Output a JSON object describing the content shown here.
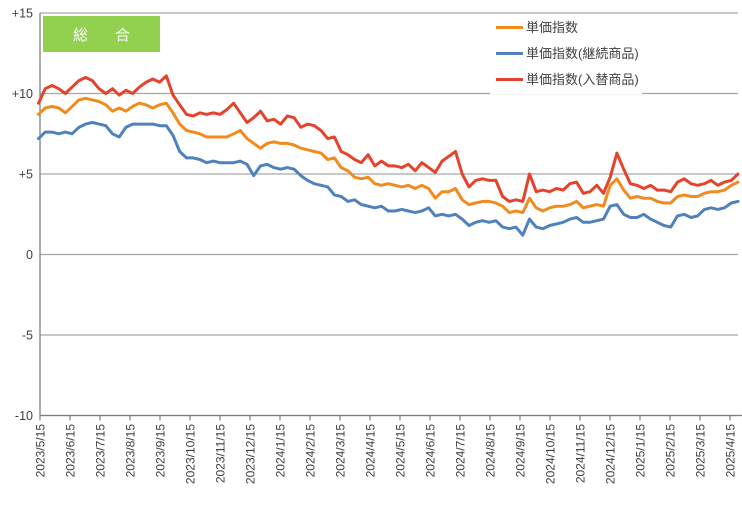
{
  "title_badge": {
    "label": "総　合",
    "bg": "#92d050",
    "text_color": "#ffffff"
  },
  "colors": {
    "background": "#ffffff",
    "gridline": "#a6a6a6",
    "axis": "#7f7f7f",
    "label_text": "#404040",
    "series_orange": "#f28b1e",
    "series_blue": "#4f81bd",
    "series_red": "#e5432c",
    "badge_green": "#92d050"
  },
  "chart_data": {
    "type": "line",
    "title": "総合",
    "x_unit": "weekly",
    "xlabel": "",
    "ylabel": "",
    "ylim": [
      -10,
      15
    ],
    "grid": "horizontal",
    "legend_position": "top-right",
    "y_ticks": [
      15,
      10,
      5,
      0,
      -5,
      -10
    ],
    "y_tick_labels": [
      "+15",
      "+10",
      "+5",
      "0",
      "-5",
      "-10"
    ],
    "x_tick_labels": [
      "2023/5/15",
      "2023/6/15",
      "2023/7/15",
      "2023/8/15",
      "2023/9/15",
      "2023/10/15",
      "2023/11/15",
      "2023/12/15",
      "2024/1/15",
      "2024/2/15",
      "2024/3/15",
      "2024/4/15",
      "2024/5/15",
      "2024/6/15",
      "2024/7/15",
      "2024/8/15",
      "2024/9/15",
      "2024/10/15",
      "2024/11/15",
      "2024/12/15",
      "2025/1/15",
      "2025/2/15",
      "2025/3/15",
      "2025/4/15"
    ],
    "series": [
      {
        "name": "単価指数",
        "color": "#f28b1e",
        "values": [
          8.7,
          9.1,
          9.2,
          9.1,
          8.8,
          9.2,
          9.6,
          9.7,
          9.6,
          9.5,
          9.3,
          8.9,
          9.1,
          8.9,
          9.2,
          9.4,
          9.3,
          9.1,
          9.3,
          9.4,
          8.8,
          8.1,
          7.7,
          7.6,
          7.5,
          7.3,
          7.3,
          7.3,
          7.3,
          7.5,
          7.7,
          7.2,
          6.9,
          6.6,
          6.9,
          7.0,
          6.9,
          6.9,
          6.8,
          6.6,
          6.5,
          6.4,
          6.3,
          5.9,
          6.0,
          5.4,
          5.2,
          4.8,
          4.7,
          4.8,
          4.4,
          4.3,
          4.4,
          4.3,
          4.2,
          4.3,
          4.1,
          4.3,
          4.1,
          3.5,
          3.9,
          3.9,
          4.1,
          3.4,
          3.1,
          3.2,
          3.3,
          3.3,
          3.2,
          3.0,
          2.6,
          2.7,
          2.6,
          3.5,
          2.9,
          2.7,
          2.9,
          3.0,
          3.0,
          3.1,
          3.3,
          2.9,
          3.0,
          3.1,
          3.0,
          4.3,
          4.7,
          4.0,
          3.5,
          3.6,
          3.5,
          3.5,
          3.3,
          3.2,
          3.2,
          3.6,
          3.7,
          3.6,
          3.6,
          3.8,
          3.9,
          3.9,
          4.0,
          4.3,
          4.5
        ]
      },
      {
        "name": "単価指数(継続商品)",
        "color": "#4f81bd",
        "values": [
          7.2,
          7.6,
          7.6,
          7.5,
          7.6,
          7.5,
          7.9,
          8.1,
          8.2,
          8.1,
          8.0,
          7.5,
          7.3,
          7.9,
          8.1,
          8.1,
          8.1,
          8.1,
          8.0,
          8.0,
          7.4,
          6.4,
          6.0,
          6.0,
          5.9,
          5.7,
          5.8,
          5.7,
          5.7,
          5.7,
          5.8,
          5.6,
          4.9,
          5.5,
          5.6,
          5.4,
          5.3,
          5.4,
          5.3,
          4.9,
          4.6,
          4.4,
          4.3,
          4.2,
          3.7,
          3.6,
          3.3,
          3.4,
          3.1,
          3.0,
          2.9,
          3.0,
          2.7,
          2.7,
          2.8,
          2.7,
          2.6,
          2.7,
          2.9,
          2.4,
          2.5,
          2.4,
          2.5,
          2.2,
          1.8,
          2.0,
          2.1,
          2.0,
          2.1,
          1.7,
          1.6,
          1.7,
          1.2,
          2.2,
          1.7,
          1.6,
          1.8,
          1.9,
          2.0,
          2.2,
          2.3,
          2.0,
          2.0,
          2.1,
          2.2,
          3.0,
          3.1,
          2.5,
          2.3,
          2.3,
          2.5,
          2.2,
          2.0,
          1.8,
          1.7,
          2.4,
          2.5,
          2.3,
          2.4,
          2.8,
          2.9,
          2.8,
          2.9,
          3.2,
          3.3
        ]
      },
      {
        "name": "単価指数(入替商品)",
        "color": "#e5432c",
        "values": [
          9.4,
          10.3,
          10.5,
          10.3,
          10.0,
          10.4,
          10.8,
          11.0,
          10.8,
          10.3,
          10.0,
          10.3,
          9.9,
          10.2,
          10.0,
          10.4,
          10.7,
          10.9,
          10.7,
          11.1,
          9.9,
          9.3,
          8.7,
          8.6,
          8.8,
          8.7,
          8.8,
          8.7,
          9.0,
          9.4,
          8.8,
          8.2,
          8.5,
          8.9,
          8.3,
          8.4,
          8.1,
          8.6,
          8.5,
          7.9,
          8.1,
          8.0,
          7.7,
          7.2,
          7.3,
          6.4,
          6.2,
          5.9,
          5.7,
          6.2,
          5.5,
          5.8,
          5.5,
          5.5,
          5.4,
          5.6,
          5.2,
          5.7,
          5.4,
          5.1,
          5.8,
          6.1,
          6.4,
          5.0,
          4.2,
          4.6,
          4.7,
          4.6,
          4.6,
          3.6,
          3.3,
          3.4,
          3.3,
          5.0,
          3.9,
          4.0,
          3.9,
          4.1,
          4.0,
          4.4,
          4.5,
          3.8,
          3.9,
          4.3,
          3.8,
          4.8,
          6.3,
          5.3,
          4.4,
          4.3,
          4.1,
          4.3,
          4.0,
          4.0,
          3.9,
          4.5,
          4.7,
          4.4,
          4.3,
          4.4,
          4.6,
          4.3,
          4.5,
          4.6,
          5.0
        ]
      }
    ]
  }
}
